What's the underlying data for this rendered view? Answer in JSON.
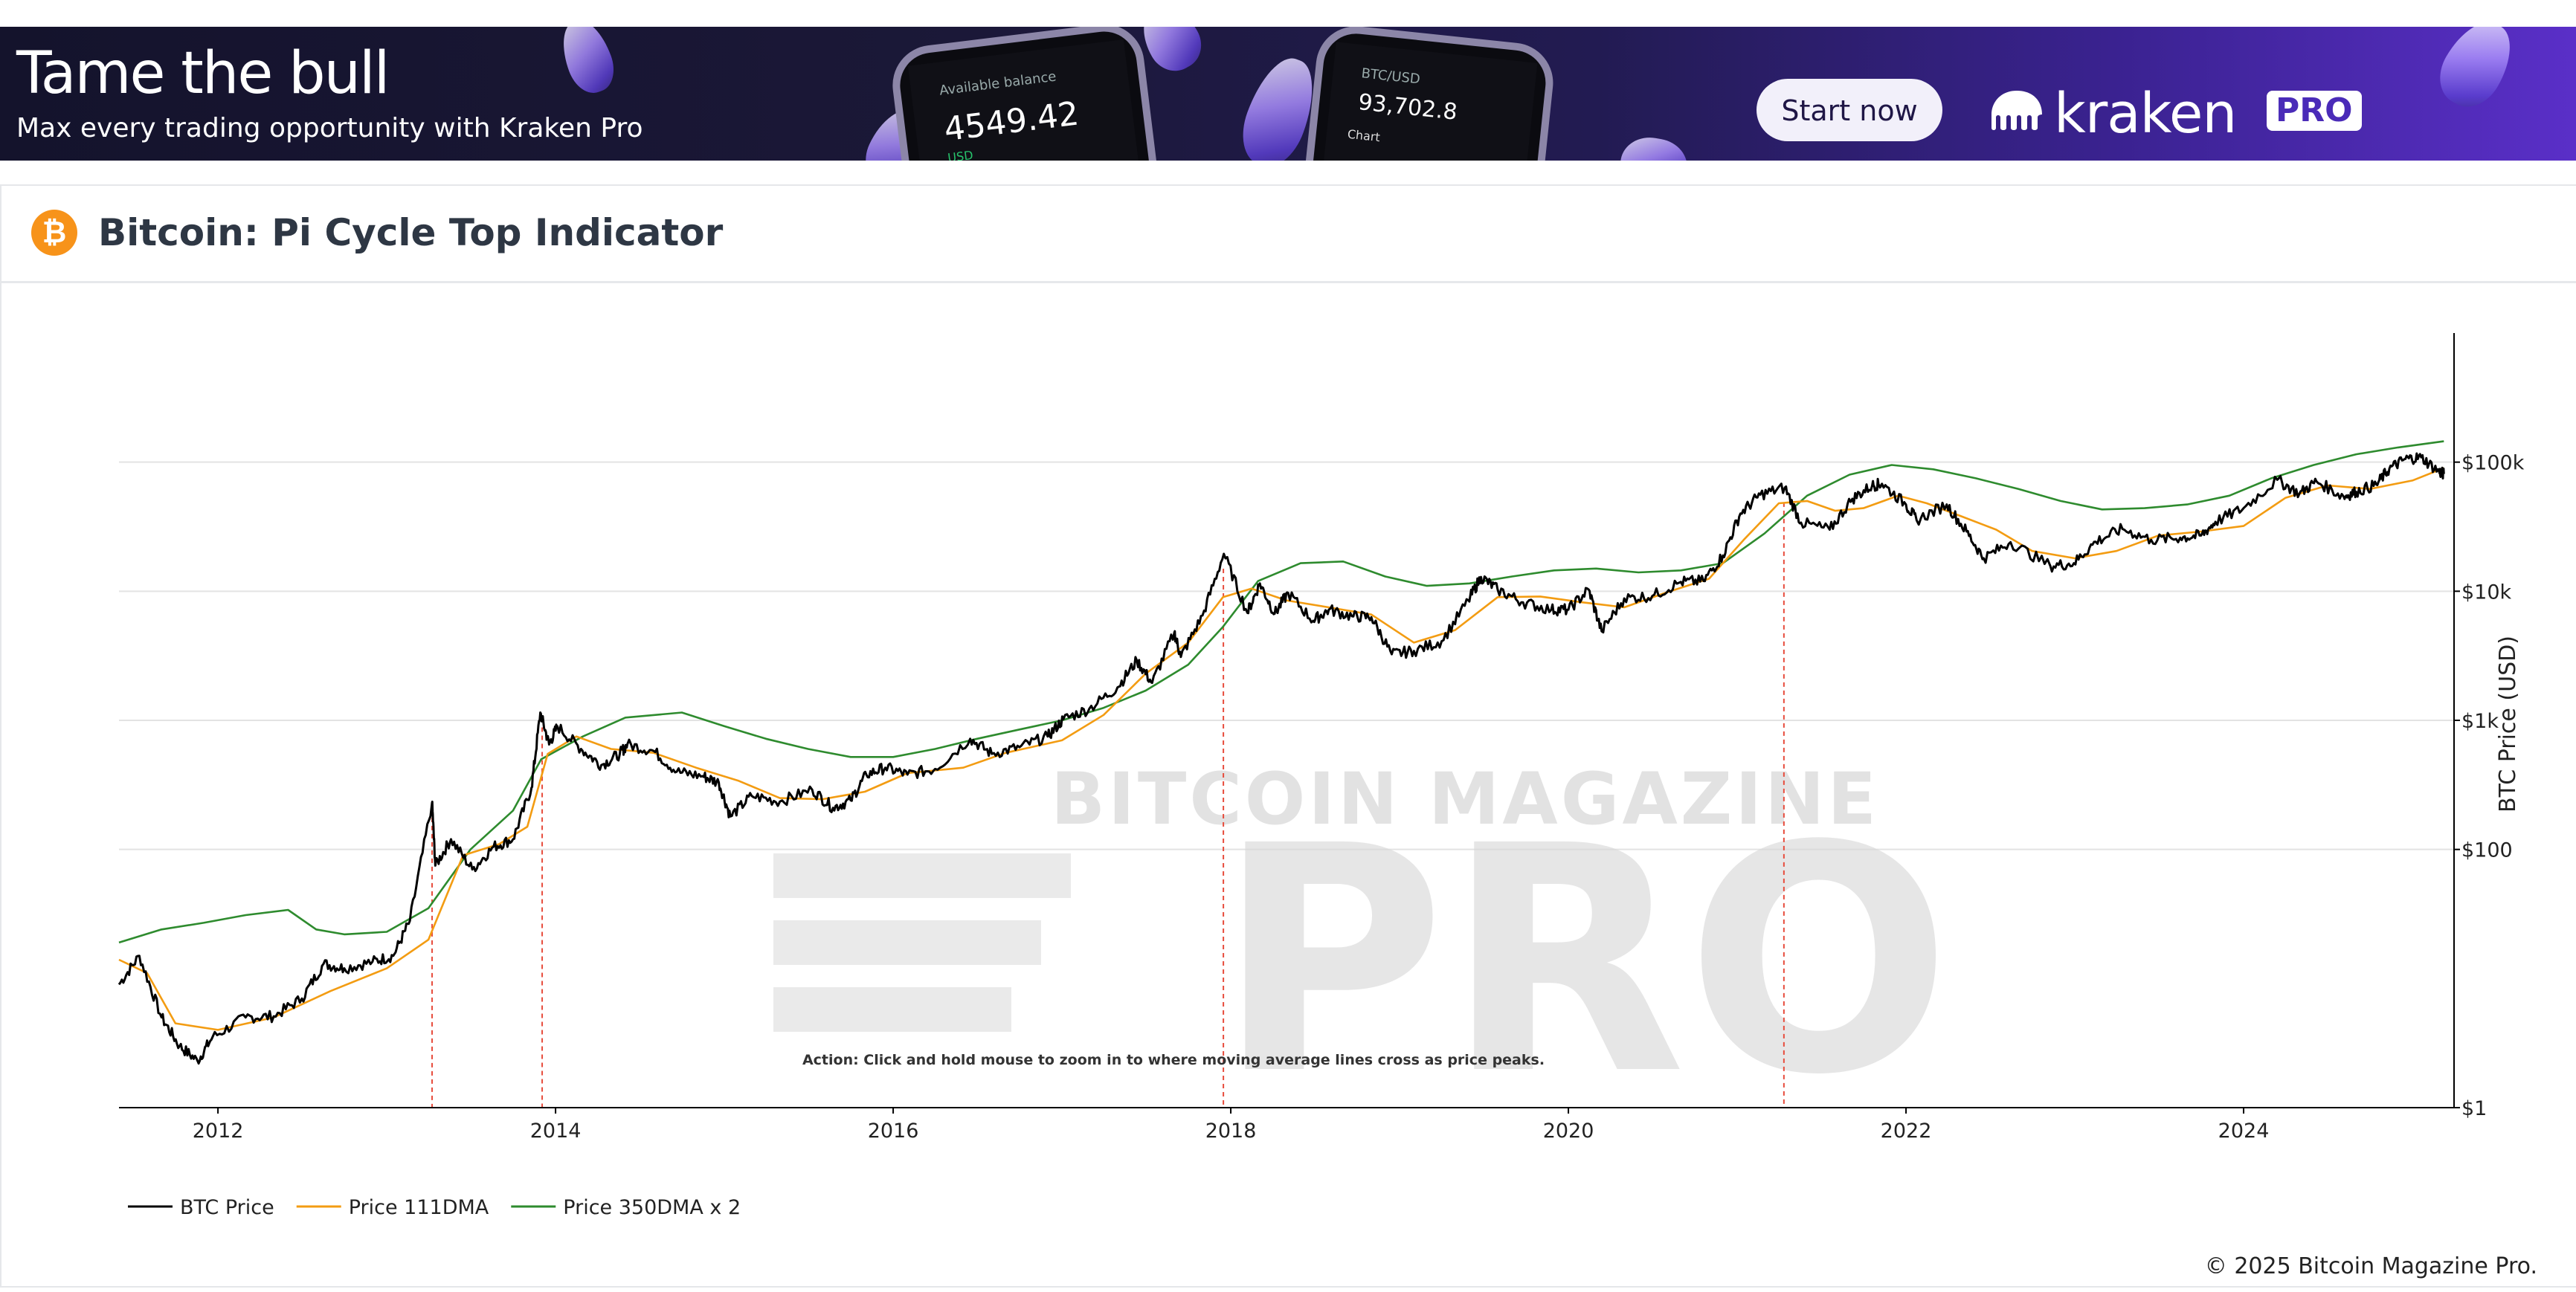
{
  "banner": {
    "headline": "Tame the bull",
    "subline": "Max every trading opportunity with Kraken Pro",
    "cta_label": "Start now",
    "brand_word": "kraken",
    "brand_badge": "PRO",
    "phone1": {
      "label": "Available balance",
      "value": "4549.42",
      "currency": "USD"
    },
    "phone2": {
      "pair": "BTC/USD",
      "value": "93,702.8",
      "tab": "Chart"
    }
  },
  "page": {
    "title": "Bitcoin: Pi Cycle Top Indicator",
    "icon": "bitcoin-icon",
    "copyright": "© 2025 Bitcoin Magazine Pro."
  },
  "colors": {
    "btc_price": "#000000",
    "dma111": "#f39c12",
    "dma350x2": "#2e8b2e",
    "cross_line": "#e74c3c",
    "btc_orange": "#f7931a"
  },
  "chart_data": {
    "type": "line",
    "title": "",
    "xlabel": "",
    "ylabel": "BTC Price (USD)",
    "y_scale": "log",
    "ylim": [
      1,
      1000000
    ],
    "xlim": [
      "2011-06-01",
      "2025-04-01"
    ],
    "x_ticks": [
      "2012",
      "2014",
      "2016",
      "2018",
      "2020",
      "2022",
      "2024"
    ],
    "y_ticks": [
      {
        "value": 1,
        "label": "$1"
      },
      {
        "value": 100,
        "label": "$100"
      },
      {
        "value": 1000,
        "label": "$1k"
      },
      {
        "value": 10000,
        "label": "$10k"
      },
      {
        "value": 100000,
        "label": "$100k"
      }
    ],
    "grid": "horizontal",
    "legend_position": "bottom-left",
    "annotation": "Action: Click and hold mouse to zoom in to where moving average lines cross as price peaks.",
    "watermark": "BITCOIN MAGAZINE PRO",
    "cross_dates": [
      "2013-04-09",
      "2013-12-03",
      "2017-12-16",
      "2021-04-12"
    ],
    "series": [
      {
        "name": "BTC Price",
        "x": [
          "2011-06-01",
          "2011-07-15",
          "2011-09-01",
          "2011-10-10",
          "2011-11-18",
          "2011-12-20",
          "2012-03-01",
          "2012-05-01",
          "2012-07-01",
          "2012-08-17",
          "2012-10-01",
          "2012-12-01",
          "2013-01-15",
          "2013-02-20",
          "2013-04-09",
          "2013-04-16",
          "2013-05-20",
          "2013-07-05",
          "2013-08-20",
          "2013-10-01",
          "2013-11-10",
          "2013-11-29",
          "2013-12-18",
          "2014-01-05",
          "2014-02-25",
          "2014-04-10",
          "2014-05-20",
          "2014-06-05",
          "2014-08-01",
          "2014-09-20",
          "2014-11-15",
          "2014-12-20",
          "2015-01-14",
          "2015-03-01",
          "2015-05-01",
          "2015-07-10",
          "2015-08-24",
          "2015-10-01",
          "2015-11-04",
          "2015-12-15",
          "2016-02-01",
          "2016-04-01",
          "2016-06-16",
          "2016-08-02",
          "2016-10-01",
          "2016-12-01",
          "2017-01-04",
          "2017-03-01",
          "2017-05-01",
          "2017-06-12",
          "2017-07-15",
          "2017-09-01",
          "2017-09-15",
          "2017-11-01",
          "2017-12-17",
          "2018-02-06",
          "2018-03-05",
          "2018-04-06",
          "2018-05-05",
          "2018-06-28",
          "2018-08-01",
          "2018-09-20",
          "2018-11-01",
          "2018-12-15",
          "2019-02-01",
          "2019-04-02",
          "2019-05-30",
          "2019-06-26",
          "2019-08-01",
          "2019-09-25",
          "2019-11-25",
          "2020-01-01",
          "2020-02-14",
          "2020-03-13",
          "2020-05-01",
          "2020-07-01",
          "2020-09-01",
          "2020-10-20",
          "2020-12-01",
          "2021-01-08",
          "2021-02-20",
          "2021-04-14",
          "2021-05-19",
          "2021-07-20",
          "2021-09-07",
          "2021-10-20",
          "2021-11-10",
          "2022-01-01",
          "2022-01-24",
          "2022-03-30",
          "2022-05-12",
          "2022-06-18",
          "2022-08-15",
          "2022-11-09",
          "2022-12-30",
          "2023-02-15",
          "2023-04-14",
          "2023-06-15",
          "2023-08-17",
          "2023-10-01",
          "2023-11-01",
          "2024-01-01",
          "2024-03-14",
          "2024-05-01",
          "2024-06-07",
          "2024-08-05",
          "2024-09-01",
          "2024-10-15",
          "2024-11-12",
          "2024-12-17",
          "2025-01-20",
          "2025-02-28",
          "2025-03-10"
        ],
        "values": [
          9,
          15,
          5,
          3,
          2.3,
          3.5,
          5,
          5.1,
          7,
          13,
          12,
          13.5,
          15,
          28,
          230,
          75,
          120,
          70,
          105,
          120,
          300,
          1150,
          650,
          900,
          600,
          450,
          550,
          650,
          580,
          400,
          370,
          330,
          180,
          260,
          235,
          290,
          210,
          240,
          380,
          430,
          380,
          420,
          720,
          550,
          620,
          750,
          1020,
          1230,
          1800,
          2900,
          1950,
          4800,
          3100,
          6500,
          19500,
          6800,
          11500,
          6700,
          9700,
          5900,
          7200,
          6400,
          6300,
          3250,
          3450,
          4100,
          8500,
          12900,
          10300,
          8200,
          7200,
          7200,
          10300,
          4900,
          8800,
          9200,
          11800,
          12000,
          18900,
          40000,
          56000,
          63500,
          34000,
          30000,
          52000,
          66000,
          68000,
          47000,
          35500,
          47000,
          29000,
          18000,
          24000,
          15700,
          16500,
          24200,
          30400,
          25000,
          26000,
          27000,
          34500,
          44000,
          73000,
          57000,
          71000,
          54000,
          59000,
          67000,
          89000,
          106000,
          109000,
          84000,
          81000
        ]
      },
      {
        "name": "Price 111DMA",
        "x": [
          "2011-06-01",
          "2011-08-01",
          "2011-10-01",
          "2012-01-01",
          "2012-05-01",
          "2012-09-01",
          "2013-01-01",
          "2013-04-01",
          "2013-06-15",
          "2013-09-01",
          "2013-11-01",
          "2013-12-15",
          "2014-02-15",
          "2014-05-01",
          "2014-08-01",
          "2014-11-01",
          "2015-02-01",
          "2015-05-01",
          "2015-08-01",
          "2015-11-01",
          "2016-02-01",
          "2016-06-01",
          "2016-09-01",
          "2017-01-01",
          "2017-04-01",
          "2017-07-01",
          "2017-10-01",
          "2017-12-15",
          "2018-02-15",
          "2018-05-01",
          "2018-08-01",
          "2018-11-01",
          "2019-02-01",
          "2019-05-01",
          "2019-08-01",
          "2019-11-01",
          "2020-02-01",
          "2020-05-01",
          "2020-08-01",
          "2020-11-01",
          "2021-01-15",
          "2021-04-01",
          "2021-06-01",
          "2021-08-01",
          "2021-10-01",
          "2021-12-15",
          "2022-02-15",
          "2022-05-01",
          "2022-07-15",
          "2022-10-01",
          "2023-01-01",
          "2023-04-01",
          "2023-07-01",
          "2023-10-01",
          "2024-01-01",
          "2024-04-01",
          "2024-07-01",
          "2024-10-01",
          "2025-01-01",
          "2025-03-10"
        ],
        "values": [
          14,
          11,
          4.5,
          4,
          5,
          8,
          12,
          20,
          90,
          110,
          150,
          550,
          750,
          600,
          560,
          430,
          340,
          250,
          245,
          280,
          390,
          430,
          560,
          700,
          1100,
          2300,
          4000,
          9000,
          10500,
          8500,
          7500,
          6600,
          4000,
          5000,
          9000,
          9100,
          8200,
          7500,
          9800,
          12500,
          25000,
          48000,
          50000,
          42000,
          44000,
          55000,
          48000,
          38000,
          30000,
          20500,
          18000,
          20500,
          27000,
          29000,
          32000,
          53000,
          66000,
          62000,
          72000,
          90000
        ]
      },
      {
        "name": "Price 350DMA x 2",
        "x": [
          "2011-06-01",
          "2011-09-01",
          "2011-12-01",
          "2012-03-01",
          "2012-06-01",
          "2012-08-01",
          "2012-10-01",
          "2013-01-01",
          "2013-04-01",
          "2013-07-01",
          "2013-10-01",
          "2013-12-01",
          "2014-03-01",
          "2014-06-01",
          "2014-10-01",
          "2015-01-01",
          "2015-04-01",
          "2015-07-01",
          "2015-10-01",
          "2016-01-01",
          "2016-04-01",
          "2016-07-01",
          "2016-10-01",
          "2017-01-01",
          "2017-04-01",
          "2017-07-01",
          "2017-10-01",
          "2017-12-15",
          "2018-03-01",
          "2018-06-01",
          "2018-09-01",
          "2018-12-01",
          "2019-03-01",
          "2019-06-01",
          "2019-09-01",
          "2019-12-01",
          "2020-03-01",
          "2020-06-01",
          "2020-09-01",
          "2020-12-01",
          "2021-03-01",
          "2021-06-01",
          "2021-09-01",
          "2021-12-01",
          "2022-03-01",
          "2022-06-01",
          "2022-09-01",
          "2022-12-01",
          "2023-03-01",
          "2023-06-01",
          "2023-09-01",
          "2023-12-01",
          "2024-03-01",
          "2024-06-01",
          "2024-09-01",
          "2024-12-01",
          "2025-03-10"
        ],
        "values": [
          19,
          24,
          27,
          31,
          34,
          24,
          22,
          23,
          35,
          100,
          200,
          500,
          750,
          1050,
          1150,
          900,
          720,
          600,
          520,
          520,
          600,
          720,
          850,
          1000,
          1250,
          1700,
          2700,
          5300,
          12000,
          16500,
          17000,
          13000,
          11000,
          11500,
          13000,
          14500,
          15000,
          14000,
          14500,
          16500,
          28000,
          55000,
          80000,
          95000,
          88000,
          75000,
          62000,
          50000,
          43000,
          44000,
          47000,
          55000,
          75000,
          95000,
          115000,
          130000,
          145000
        ]
      }
    ]
  }
}
